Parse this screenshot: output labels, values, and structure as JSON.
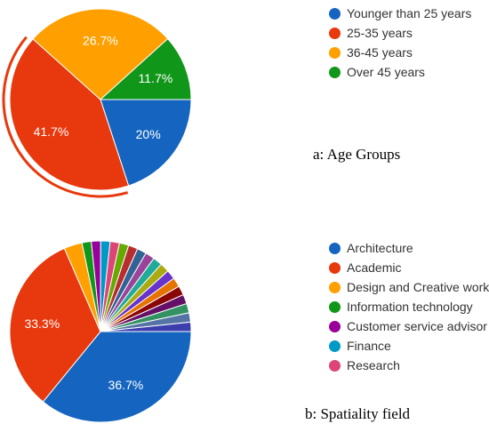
{
  "chart_data": [
    {
      "type": "pie",
      "caption": "a: Age Groups",
      "legend_position": "right",
      "slices": [
        {
          "label": "Younger than 25 years",
          "value": 20,
          "display": "20%",
          "color": "#1565c0"
        },
        {
          "label": "25-35 years",
          "value": 41.7,
          "display": "41.7%",
          "color": "#e8380d",
          "exploded": true
        },
        {
          "label": "36-45 years",
          "value": 26.7,
          "display": "26.7%",
          "color": "#ff9f00"
        },
        {
          "label": "Over 45 years",
          "value": 11.7,
          "display": "11.7%",
          "color": "#109618"
        }
      ]
    },
    {
      "type": "pie",
      "caption": "b: Spatiality field",
      "legend_position": "right",
      "slices": [
        {
          "label": "Architecture",
          "value": 36.7,
          "display": "36.7%",
          "color": "#1565c0",
          "in_legend": true
        },
        {
          "label": "Academic",
          "value": 33.3,
          "display": "33.3%",
          "color": "#e8380d",
          "in_legend": true
        },
        {
          "label": "Design and Creative work",
          "value": 3.3,
          "color": "#ff9f00",
          "in_legend": true
        },
        {
          "label": "Information technology",
          "value": 1.7,
          "color": "#109618",
          "in_legend": true
        },
        {
          "label": "Customer service advisor",
          "value": 1.7,
          "color": "#990099",
          "in_legend": true
        },
        {
          "label": "Finance",
          "value": 1.7,
          "color": "#0099c6",
          "in_legend": true
        },
        {
          "label": "Research",
          "value": 1.7,
          "color": "#dd4477",
          "in_legend": true
        },
        {
          "value": 1.7,
          "color": "#66aa00",
          "in_legend": false
        },
        {
          "value": 1.7,
          "color": "#b82e2e",
          "in_legend": false
        },
        {
          "value": 1.7,
          "color": "#316395",
          "in_legend": false
        },
        {
          "value": 1.7,
          "color": "#994499",
          "in_legend": false
        },
        {
          "value": 1.7,
          "color": "#22aa99",
          "in_legend": false
        },
        {
          "value": 1.7,
          "color": "#aaaa11",
          "in_legend": false
        },
        {
          "value": 1.7,
          "color": "#6633cc",
          "in_legend": false
        },
        {
          "value": 1.7,
          "color": "#e67300",
          "in_legend": false
        },
        {
          "value": 1.7,
          "color": "#8b0707",
          "in_legend": false
        },
        {
          "value": 1.7,
          "color": "#651067",
          "in_legend": false
        },
        {
          "value": 1.7,
          "color": "#329262",
          "in_legend": false
        },
        {
          "value": 1.7,
          "color": "#5574a6",
          "in_legend": false
        },
        {
          "value": 1.7,
          "color": "#3b3eac",
          "in_legend": false
        }
      ]
    }
  ]
}
